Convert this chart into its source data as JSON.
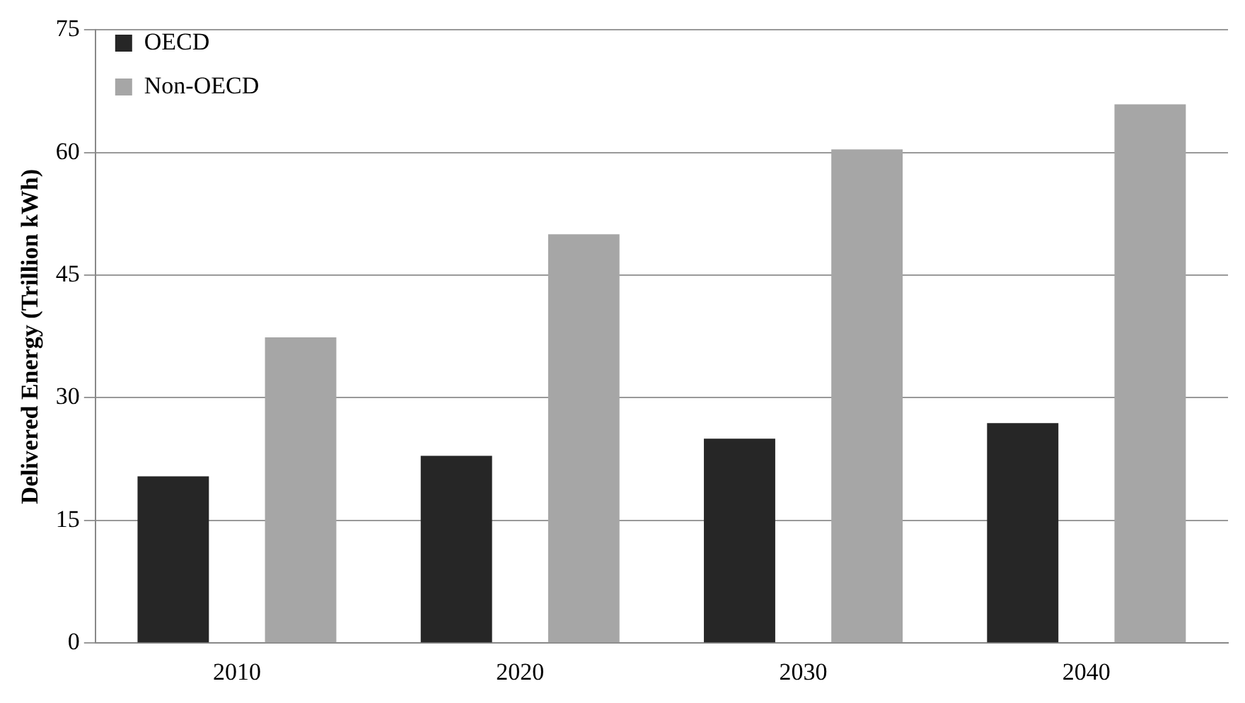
{
  "chart_data": {
    "type": "bar",
    "ylabel": "Delivered Energy (Trillion kWh)",
    "categories": [
      "2010",
      "2020",
      "2030",
      "2040"
    ],
    "series": [
      {
        "name": "OECD",
        "color": "#262626",
        "values": [
          20.4,
          22.9,
          25.0,
          26.9
        ]
      },
      {
        "name": "Non-OECD",
        "color": "#a6a6a6",
        "values": [
          37.4,
          50.0,
          60.4,
          65.9
        ]
      }
    ],
    "ylim": [
      0,
      75
    ],
    "yticks": [
      0,
      15,
      30,
      45,
      60,
      75
    ],
    "grid": "y",
    "legend": "top left"
  }
}
